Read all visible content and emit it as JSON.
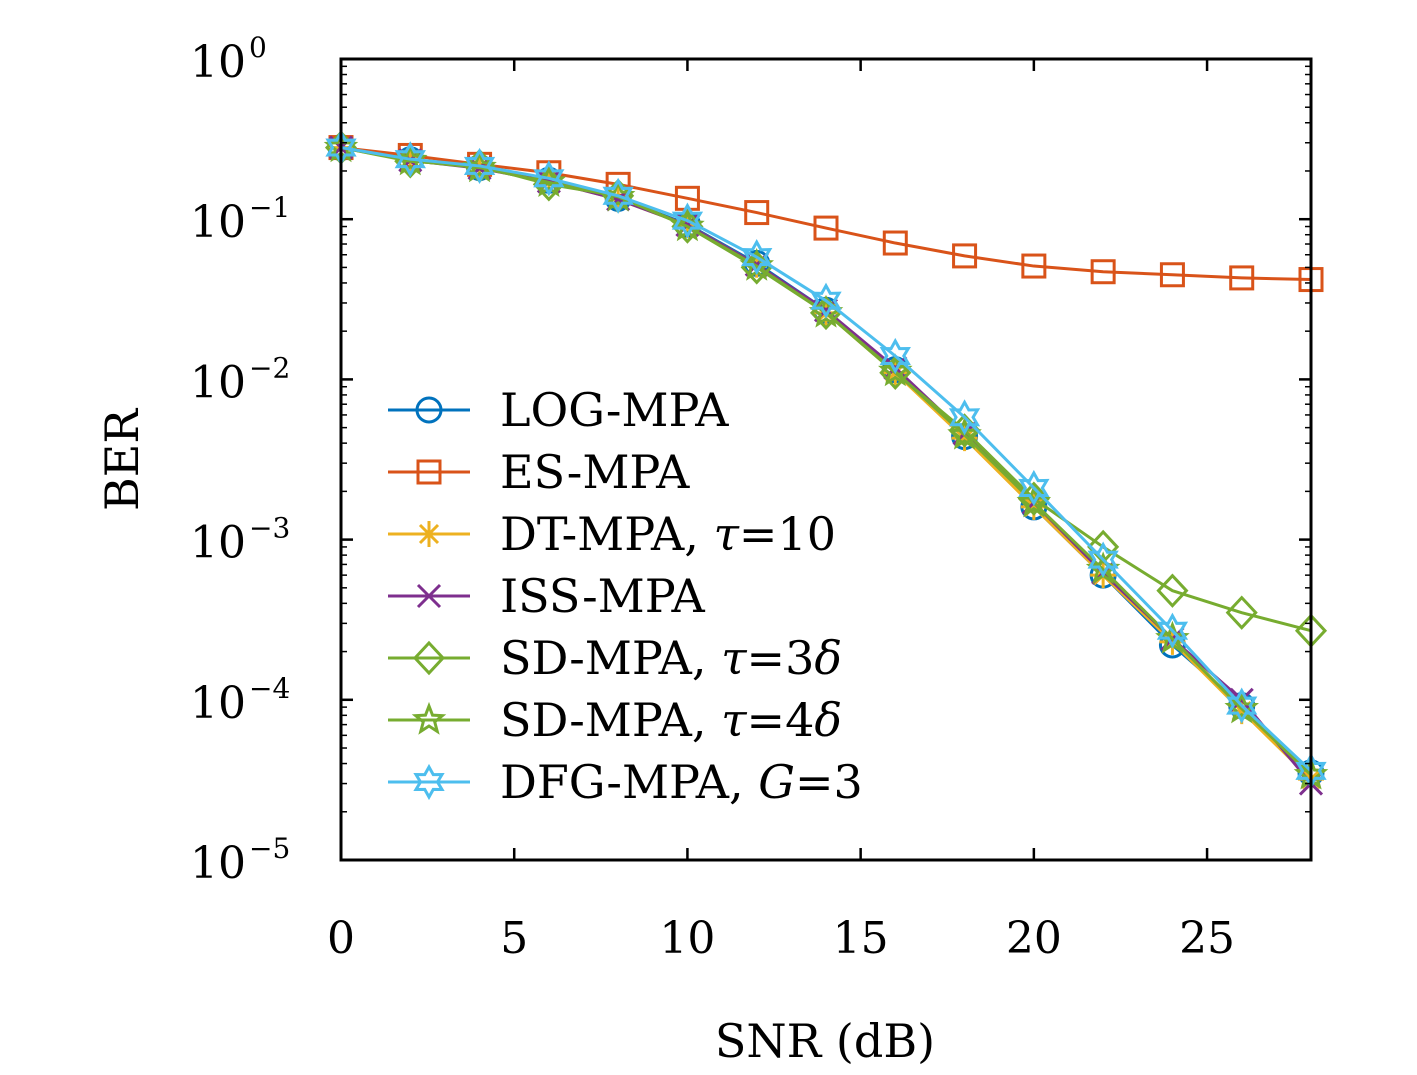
{
  "chart_data": {
    "type": "line",
    "title": "",
    "xlabel": "SNR (dB)",
    "ylabel": "BER",
    "xlim": [
      0,
      28
    ],
    "ylim": [
      1e-05,
      1
    ],
    "yscale": "log",
    "grid": false,
    "legend_position": "lower-left",
    "x_ticks": [
      {
        "value": 0,
        "label": "0"
      },
      {
        "value": 5,
        "label": "5"
      },
      {
        "value": 10,
        "label": "10"
      },
      {
        "value": 15,
        "label": "15"
      },
      {
        "value": 20,
        "label": "20"
      },
      {
        "value": 25,
        "label": "25"
      }
    ],
    "y_ticks": [
      {
        "value": 1,
        "base": "10",
        "exp": "0"
      },
      {
        "value": 0.1,
        "base": "10",
        "exp": "−1"
      },
      {
        "value": 0.01,
        "base": "10",
        "exp": "−2"
      },
      {
        "value": 0.001,
        "base": "10",
        "exp": "−3"
      },
      {
        "value": 0.0001,
        "base": "10",
        "exp": "−4"
      },
      {
        "value": 1e-05,
        "base": "10",
        "exp": "−5"
      }
    ],
    "x": [
      0,
      2,
      4,
      6,
      8,
      10,
      12,
      14,
      16,
      18,
      20,
      22,
      24,
      26,
      28
    ],
    "series": [
      {
        "name": "LOG-MPA",
        "label_parts": [
          {
            "text": "LOG-MPA",
            "italic": false
          }
        ],
        "color": "#0072BD",
        "marker": "circle",
        "values": [
          0.28,
          0.235,
          0.21,
          0.175,
          0.135,
          0.093,
          0.053,
          0.027,
          0.0115,
          0.0044,
          0.0016,
          0.0006,
          0.00022,
          9.2e-05,
          3.5e-05
        ]
      },
      {
        "name": "ES-MPA",
        "label_parts": [
          {
            "text": "ES-MPA",
            "italic": false
          }
        ],
        "color": "#D95319",
        "marker": "square",
        "values": [
          0.28,
          0.25,
          0.22,
          0.195,
          0.165,
          0.135,
          0.11,
          0.088,
          0.071,
          0.059,
          0.051,
          0.047,
          0.045,
          0.043,
          0.042
        ]
      },
      {
        "name": "DT-MPA, τ=10",
        "label_parts": [
          {
            "text": "DT-MPA, ",
            "italic": false
          },
          {
            "text": "τ",
            "italic": true
          },
          {
            "text": "=10",
            "italic": false
          }
        ],
        "color": "#EDB120",
        "marker": "asterisk",
        "values": [
          0.28,
          0.235,
          0.21,
          0.173,
          0.133,
          0.092,
          0.052,
          0.026,
          0.011,
          0.0043,
          0.0016,
          0.0006,
          0.00023,
          8.5e-05,
          3.2e-05
        ]
      },
      {
        "name": "ISS-MPA",
        "label_parts": [
          {
            "text": "ISS-MPA",
            "italic": false
          }
        ],
        "color": "#7E2F8E",
        "marker": "x",
        "values": [
          0.28,
          0.233,
          0.208,
          0.172,
          0.133,
          0.092,
          0.052,
          0.027,
          0.0118,
          0.0046,
          0.0017,
          0.00062,
          0.00024,
          0.0001,
          3e-05
        ]
      },
      {
        "name": "SD-MPA, τ=3δ",
        "label_parts": [
          {
            "text": "SD-MPA, ",
            "italic": false
          },
          {
            "text": "τ",
            "italic": true
          },
          {
            "text": "=3",
            "italic": false
          },
          {
            "text": "δ",
            "italic": true
          }
        ],
        "color": "#77AC30",
        "marker": "diamond",
        "values": [
          0.28,
          0.23,
          0.215,
          0.165,
          0.14,
          0.09,
          0.05,
          0.026,
          0.011,
          0.0048,
          0.0018,
          0.0009,
          0.00048,
          0.00035,
          0.00027
        ]
      },
      {
        "name": "SD-MPA, τ=4δ",
        "label_parts": [
          {
            "text": "SD-MPA, ",
            "italic": false
          },
          {
            "text": "τ",
            "italic": true
          },
          {
            "text": "=4",
            "italic": false
          },
          {
            "text": "δ",
            "italic": true
          }
        ],
        "color": "#77AC30",
        "marker": "star",
        "values": [
          0.28,
          0.232,
          0.21,
          0.17,
          0.138,
          0.09,
          0.051,
          0.026,
          0.0112,
          0.0045,
          0.0017,
          0.00065,
          0.00024,
          8.8e-05,
          3.4e-05
        ]
      },
      {
        "name": "DFG-MPA, G=3",
        "label_parts": [
          {
            "text": "DFG-MPA, ",
            "italic": false
          },
          {
            "text": "G",
            "italic": true
          },
          {
            "text": "=3",
            "italic": false
          }
        ],
        "color": "#4DBEEE",
        "marker": "hexagram",
        "values": [
          0.28,
          0.237,
          0.215,
          0.18,
          0.14,
          0.098,
          0.058,
          0.031,
          0.014,
          0.0058,
          0.0021,
          0.00075,
          0.00027,
          9.2e-05,
          3.6e-05
        ]
      }
    ]
  }
}
